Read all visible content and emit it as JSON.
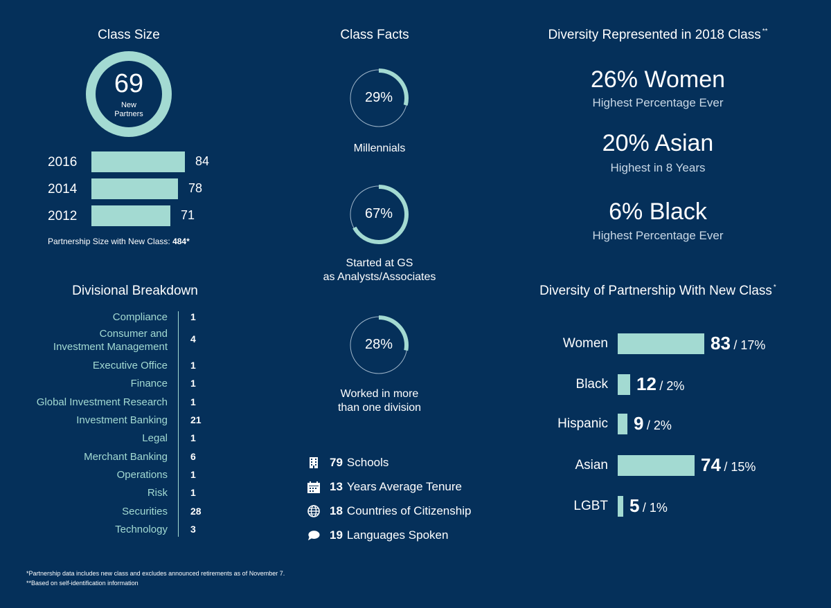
{
  "class_size": {
    "title": "Class Size",
    "number": "69",
    "number_label_1": "New",
    "number_label_2": "Partners",
    "partnership_prefix": "Partnership Size with New Class: ",
    "partnership_value": "484*"
  },
  "class_facts": {
    "title": "Class Facts",
    "donuts": [
      {
        "pct_label": "29%",
        "value": 29,
        "label_1": "Millennials",
        "label_2": ""
      },
      {
        "pct_label": "67%",
        "value": 67,
        "label_1": "Started at GS",
        "label_2": "as Analysts/Associates"
      },
      {
        "pct_label": "28%",
        "value": 28,
        "label_1": "Worked in more",
        "label_2": "than one division"
      }
    ],
    "stats": [
      {
        "icon": "building-icon",
        "num": "79",
        "text": "Schools"
      },
      {
        "icon": "calendar-icon",
        "num": "13",
        "text": "Years Average Tenure"
      },
      {
        "icon": "globe-icon",
        "num": "18",
        "text": "Countries of Citizenship"
      },
      {
        "icon": "speech-bubble-icon",
        "num": "19",
        "text": "Languages Spoken"
      }
    ]
  },
  "divisional": {
    "title": "Divisional Breakdown",
    "rows": [
      {
        "name": "Compliance",
        "name_2": "",
        "value": "1"
      },
      {
        "name": "Consumer and",
        "name_2": "Investment Management",
        "value": "4"
      },
      {
        "name": "Executive Office",
        "name_2": "",
        "value": "1"
      },
      {
        "name": "Finance",
        "name_2": "",
        "value": "1"
      },
      {
        "name": "Global Investment Research",
        "name_2": "",
        "value": "1"
      },
      {
        "name": "Investment Banking",
        "name_2": "",
        "value": "21"
      },
      {
        "name": "Legal",
        "name_2": "",
        "value": "1"
      },
      {
        "name": "Merchant Banking",
        "name_2": "",
        "value": "6"
      },
      {
        "name": "Operations",
        "name_2": "",
        "value": "1"
      },
      {
        "name": "Risk",
        "name_2": "",
        "value": "1"
      },
      {
        "name": "Securities",
        "name_2": "",
        "value": "28"
      },
      {
        "name": "Technology",
        "name_2": "",
        "value": "3"
      }
    ]
  },
  "diversity_2018": {
    "title": "Diversity Represented in 2018 Class",
    "title_mark": "**",
    "items": [
      {
        "headline": "26% Women",
        "sub": "Highest Percentage Ever"
      },
      {
        "headline": "20% Asian",
        "sub": "Highest in 8 Years"
      },
      {
        "headline": "6% Black",
        "sub": "Highest Percentage Ever"
      }
    ]
  },
  "diversity_partnership": {
    "title": "Diversity of Partnership With New Class",
    "title_mark": "*"
  },
  "footnotes": {
    "line_1": "*Partnership data includes new class and excludes announced retirements as of November 7.",
    "line_2": "**Based on self-identification information"
  },
  "colors": {
    "background": "#05305a",
    "accent": "#a3dad2",
    "ring_track": "#9fb5c9"
  },
  "chart_data": [
    {
      "type": "bar",
      "orientation": "horizontal",
      "categories": [
        "2016",
        "2014",
        "2012"
      ],
      "values": [
        84,
        78,
        71
      ],
      "title": "Class Size"
    },
    {
      "type": "bar",
      "orientation": "horizontal",
      "title": "Diversity of Partnership With New Class",
      "categories": [
        "Women",
        "Black",
        "Hispanic",
        "Asian",
        "LGBT"
      ],
      "values": [
        83,
        12,
        9,
        74,
        5
      ],
      "percent_labels": [
        "/ 17%",
        "/ 2%",
        "/ 2%",
        "/ 15%",
        "/ 1%"
      ]
    }
  ]
}
